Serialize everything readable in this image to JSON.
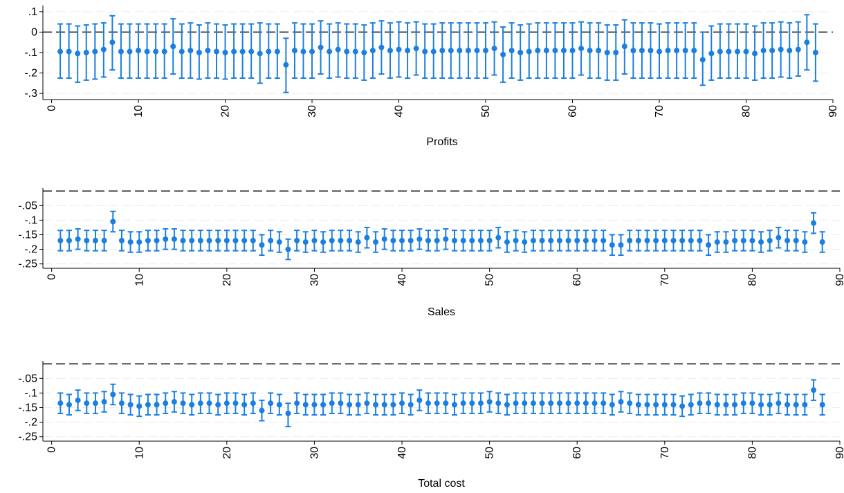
{
  "chart_data": [
    {
      "type": "scatter",
      "subtype": "point-with-confidence-interval",
      "xlabel": "Profits",
      "ylabel": "",
      "xlim": [
        -1,
        90
      ],
      "ylim": [
        -0.33,
        0.13
      ],
      "x_ticks": [
        0,
        10,
        20,
        30,
        40,
        50,
        60,
        70,
        80,
        90
      ],
      "x_tick_labels": [
        "0",
        "10",
        "20",
        "30",
        "40",
        "50",
        "60",
        "70",
        "80",
        "90"
      ],
      "y_ticks": [
        0.1,
        0,
        -0.1,
        -0.2,
        -0.3
      ],
      "y_tick_labels": [
        ".1",
        "0",
        "-.1",
        "-.2",
        "-.3"
      ],
      "reference_line": 0,
      "grid": true,
      "marker_color": "#1a7fe0",
      "x": [
        1,
        2,
        3,
        4,
        5,
        6,
        7,
        8,
        9,
        10,
        11,
        12,
        13,
        14,
        15,
        16,
        17,
        18,
        19,
        20,
        21,
        22,
        23,
        24,
        25,
        26,
        27,
        28,
        29,
        30,
        31,
        32,
        33,
        34,
        35,
        36,
        37,
        38,
        39,
        40,
        41,
        42,
        43,
        44,
        45,
        46,
        47,
        48,
        49,
        50,
        51,
        52,
        53,
        54,
        55,
        56,
        57,
        58,
        59,
        60,
        61,
        62,
        63,
        64,
        65,
        66,
        67,
        68,
        69,
        70,
        71,
        72,
        73,
        74,
        75,
        76,
        77,
        78,
        79,
        80,
        81,
        82,
        83,
        84,
        85,
        86,
        87,
        88
      ],
      "values": [
        -0.095,
        -0.095,
        -0.105,
        -0.1,
        -0.095,
        -0.085,
        -0.05,
        -0.095,
        -0.095,
        -0.09,
        -0.095,
        -0.095,
        -0.095,
        -0.07,
        -0.095,
        -0.09,
        -0.1,
        -0.09,
        -0.095,
        -0.1,
        -0.095,
        -0.095,
        -0.095,
        -0.105,
        -0.095,
        -0.095,
        -0.16,
        -0.09,
        -0.095,
        -0.095,
        -0.075,
        -0.095,
        -0.085,
        -0.095,
        -0.095,
        -0.1,
        -0.09,
        -0.075,
        -0.09,
        -0.085,
        -0.09,
        -0.08,
        -0.095,
        -0.095,
        -0.09,
        -0.09,
        -0.09,
        -0.09,
        -0.09,
        -0.09,
        -0.08,
        -0.11,
        -0.09,
        -0.1,
        -0.095,
        -0.09,
        -0.09,
        -0.09,
        -0.09,
        -0.09,
        -0.08,
        -0.09,
        -0.09,
        -0.1,
        -0.1,
        -0.07,
        -0.09,
        -0.09,
        -0.09,
        -0.095,
        -0.09,
        -0.09,
        -0.09,
        -0.09,
        -0.135,
        -0.105,
        -0.095,
        -0.095,
        -0.095,
        -0.095,
        -0.105,
        -0.09,
        -0.09,
        -0.085,
        -0.09,
        -0.085,
        -0.05,
        -0.1
      ],
      "ci_lower": [
        -0.225,
        -0.225,
        -0.245,
        -0.235,
        -0.23,
        -0.22,
        -0.185,
        -0.225,
        -0.225,
        -0.225,
        -0.225,
        -0.225,
        -0.225,
        -0.205,
        -0.225,
        -0.225,
        -0.23,
        -0.225,
        -0.225,
        -0.23,
        -0.225,
        -0.225,
        -0.225,
        -0.25,
        -0.225,
        -0.225,
        -0.295,
        -0.225,
        -0.225,
        -0.225,
        -0.205,
        -0.225,
        -0.22,
        -0.225,
        -0.225,
        -0.235,
        -0.225,
        -0.205,
        -0.225,
        -0.22,
        -0.225,
        -0.21,
        -0.225,
        -0.225,
        -0.225,
        -0.225,
        -0.225,
        -0.225,
        -0.225,
        -0.225,
        -0.21,
        -0.245,
        -0.225,
        -0.235,
        -0.225,
        -0.225,
        -0.225,
        -0.225,
        -0.225,
        -0.225,
        -0.21,
        -0.225,
        -0.225,
        -0.235,
        -0.235,
        -0.205,
        -0.225,
        -0.225,
        -0.225,
        -0.225,
        -0.225,
        -0.225,
        -0.225,
        -0.225,
        -0.26,
        -0.235,
        -0.225,
        -0.225,
        -0.225,
        -0.225,
        -0.235,
        -0.225,
        -0.225,
        -0.22,
        -0.225,
        -0.215,
        -0.185,
        -0.24
      ],
      "ci_upper": [
        0.04,
        0.04,
        0.03,
        0.035,
        0.04,
        0.045,
        0.08,
        0.04,
        0.04,
        0.04,
        0.04,
        0.04,
        0.04,
        0.065,
        0.04,
        0.045,
        0.035,
        0.045,
        0.04,
        0.035,
        0.04,
        0.04,
        0.04,
        0.045,
        0.04,
        0.04,
        -0.03,
        0.045,
        0.04,
        0.04,
        0.055,
        0.04,
        0.045,
        0.04,
        0.04,
        0.035,
        0.045,
        0.055,
        0.045,
        0.05,
        0.045,
        0.05,
        0.04,
        0.04,
        0.045,
        0.045,
        0.045,
        0.045,
        0.045,
        0.045,
        0.05,
        0.025,
        0.045,
        0.035,
        0.04,
        0.045,
        0.045,
        0.045,
        0.045,
        0.045,
        0.05,
        0.045,
        0.045,
        0.035,
        0.035,
        0.06,
        0.045,
        0.045,
        0.045,
        0.04,
        0.045,
        0.045,
        0.045,
        0.045,
        0.0,
        0.03,
        0.04,
        0.04,
        0.04,
        0.04,
        0.03,
        0.045,
        0.045,
        0.05,
        0.045,
        0.05,
        0.085,
        0.04
      ]
    },
    {
      "type": "scatter",
      "subtype": "point-with-confidence-interval",
      "xlabel": "Sales",
      "ylabel": "",
      "xlim": [
        -1,
        90
      ],
      "ylim": [
        -0.265,
        0.01
      ],
      "x_ticks": [
        0,
        10,
        20,
        30,
        40,
        50,
        60,
        70,
        80,
        90
      ],
      "x_tick_labels": [
        "0",
        "10",
        "20",
        "30",
        "40",
        "50",
        "60",
        "70",
        "80",
        "90"
      ],
      "y_ticks": [
        -0.05,
        -0.1,
        -0.15,
        -0.2,
        -0.25
      ],
      "y_tick_labels": [
        "-.05",
        "-.1",
        "-.15",
        "-.2",
        "-.25"
      ],
      "reference_line": 0,
      "grid": true,
      "marker_color": "#1a7fe0",
      "x": [
        1,
        2,
        3,
        4,
        5,
        6,
        7,
        8,
        9,
        10,
        11,
        12,
        13,
        14,
        15,
        16,
        17,
        18,
        19,
        20,
        21,
        22,
        23,
        24,
        25,
        26,
        27,
        28,
        29,
        30,
        31,
        32,
        33,
        34,
        35,
        36,
        37,
        38,
        39,
        40,
        41,
        42,
        43,
        44,
        45,
        46,
        47,
        48,
        49,
        50,
        51,
        52,
        53,
        54,
        55,
        56,
        57,
        58,
        59,
        60,
        61,
        62,
        63,
        64,
        65,
        66,
        67,
        68,
        69,
        70,
        71,
        72,
        73,
        74,
        75,
        76,
        77,
        78,
        79,
        80,
        81,
        82,
        83,
        84,
        85,
        86,
        87,
        88
      ],
      "values": [
        -0.17,
        -0.17,
        -0.165,
        -0.17,
        -0.17,
        -0.17,
        -0.105,
        -0.17,
        -0.175,
        -0.175,
        -0.17,
        -0.17,
        -0.165,
        -0.165,
        -0.17,
        -0.17,
        -0.17,
        -0.17,
        -0.17,
        -0.17,
        -0.17,
        -0.17,
        -0.17,
        -0.185,
        -0.17,
        -0.175,
        -0.2,
        -0.17,
        -0.175,
        -0.17,
        -0.175,
        -0.17,
        -0.17,
        -0.17,
        -0.175,
        -0.16,
        -0.175,
        -0.165,
        -0.17,
        -0.17,
        -0.17,
        -0.165,
        -0.17,
        -0.17,
        -0.165,
        -0.17,
        -0.17,
        -0.17,
        -0.17,
        -0.17,
        -0.16,
        -0.175,
        -0.17,
        -0.175,
        -0.17,
        -0.17,
        -0.17,
        -0.17,
        -0.17,
        -0.17,
        -0.17,
        -0.17,
        -0.17,
        -0.185,
        -0.185,
        -0.17,
        -0.17,
        -0.17,
        -0.17,
        -0.17,
        -0.17,
        -0.17,
        -0.17,
        -0.17,
        -0.185,
        -0.175,
        -0.175,
        -0.17,
        -0.17,
        -0.17,
        -0.175,
        -0.17,
        -0.16,
        -0.17,
        -0.17,
        -0.175,
        -0.11,
        -0.175
      ],
      "ci_lower": [
        -0.205,
        -0.205,
        -0.2,
        -0.205,
        -0.205,
        -0.205,
        -0.14,
        -0.205,
        -0.21,
        -0.21,
        -0.205,
        -0.205,
        -0.2,
        -0.2,
        -0.205,
        -0.205,
        -0.205,
        -0.205,
        -0.205,
        -0.205,
        -0.205,
        -0.205,
        -0.205,
        -0.22,
        -0.205,
        -0.21,
        -0.235,
        -0.205,
        -0.21,
        -0.205,
        -0.21,
        -0.205,
        -0.205,
        -0.205,
        -0.21,
        -0.195,
        -0.21,
        -0.2,
        -0.205,
        -0.205,
        -0.205,
        -0.2,
        -0.205,
        -0.205,
        -0.2,
        -0.205,
        -0.205,
        -0.205,
        -0.205,
        -0.205,
        -0.195,
        -0.21,
        -0.205,
        -0.21,
        -0.205,
        -0.205,
        -0.205,
        -0.205,
        -0.205,
        -0.205,
        -0.205,
        -0.205,
        -0.205,
        -0.22,
        -0.22,
        -0.205,
        -0.205,
        -0.205,
        -0.205,
        -0.205,
        -0.205,
        -0.205,
        -0.205,
        -0.205,
        -0.22,
        -0.21,
        -0.21,
        -0.205,
        -0.205,
        -0.205,
        -0.21,
        -0.205,
        -0.195,
        -0.205,
        -0.205,
        -0.21,
        -0.145,
        -0.21
      ],
      "ci_upper": [
        -0.135,
        -0.135,
        -0.13,
        -0.135,
        -0.135,
        -0.135,
        -0.07,
        -0.135,
        -0.14,
        -0.14,
        -0.135,
        -0.135,
        -0.13,
        -0.13,
        -0.135,
        -0.135,
        -0.135,
        -0.135,
        -0.135,
        -0.135,
        -0.135,
        -0.135,
        -0.135,
        -0.15,
        -0.135,
        -0.14,
        -0.165,
        -0.135,
        -0.14,
        -0.135,
        -0.14,
        -0.135,
        -0.135,
        -0.135,
        -0.14,
        -0.125,
        -0.14,
        -0.13,
        -0.135,
        -0.135,
        -0.135,
        -0.13,
        -0.135,
        -0.135,
        -0.13,
        -0.135,
        -0.135,
        -0.135,
        -0.135,
        -0.135,
        -0.125,
        -0.14,
        -0.135,
        -0.14,
        -0.135,
        -0.135,
        -0.135,
        -0.135,
        -0.135,
        -0.135,
        -0.135,
        -0.135,
        -0.135,
        -0.15,
        -0.15,
        -0.135,
        -0.135,
        -0.135,
        -0.135,
        -0.135,
        -0.135,
        -0.135,
        -0.135,
        -0.135,
        -0.15,
        -0.14,
        -0.14,
        -0.135,
        -0.135,
        -0.135,
        -0.14,
        -0.135,
        -0.125,
        -0.135,
        -0.135,
        -0.14,
        -0.075,
        -0.14
      ]
    },
    {
      "type": "scatter",
      "subtype": "point-with-confidence-interval",
      "xlabel": "Total cost",
      "ylabel": "",
      "xlim": [
        -1,
        90
      ],
      "ylim": [
        -0.265,
        0.01
      ],
      "x_ticks": [
        0,
        10,
        20,
        30,
        40,
        50,
        60,
        70,
        80,
        90
      ],
      "x_tick_labels": [
        "0",
        "10",
        "20",
        "30",
        "40",
        "50",
        "60",
        "70",
        "80",
        "90"
      ],
      "y_ticks": [
        -0.05,
        -0.1,
        -0.15,
        -0.2,
        -0.25
      ],
      "y_tick_labels": [
        "-.05",
        "-.1",
        "-.15",
        "-.2",
        "-.25"
      ],
      "reference_line": 0,
      "grid": true,
      "marker_color": "#1a7fe0",
      "x": [
        1,
        2,
        3,
        4,
        5,
        6,
        7,
        8,
        9,
        10,
        11,
        12,
        13,
        14,
        15,
        16,
        17,
        18,
        19,
        20,
        21,
        22,
        23,
        24,
        25,
        26,
        27,
        28,
        29,
        30,
        31,
        32,
        33,
        34,
        35,
        36,
        37,
        38,
        39,
        40,
        41,
        42,
        43,
        44,
        45,
        46,
        47,
        48,
        49,
        50,
        51,
        52,
        53,
        54,
        55,
        56,
        57,
        58,
        59,
        60,
        61,
        62,
        63,
        64,
        65,
        66,
        67,
        68,
        69,
        70,
        71,
        72,
        73,
        74,
        75,
        76,
        77,
        78,
        79,
        80,
        81,
        82,
        83,
        84,
        85,
        86,
        87,
        88
      ],
      "values": [
        -0.135,
        -0.14,
        -0.125,
        -0.135,
        -0.135,
        -0.13,
        -0.105,
        -0.135,
        -0.14,
        -0.145,
        -0.14,
        -0.14,
        -0.135,
        -0.13,
        -0.135,
        -0.14,
        -0.135,
        -0.135,
        -0.14,
        -0.135,
        -0.135,
        -0.14,
        -0.135,
        -0.16,
        -0.135,
        -0.14,
        -0.17,
        -0.135,
        -0.14,
        -0.14,
        -0.14,
        -0.135,
        -0.135,
        -0.14,
        -0.14,
        -0.135,
        -0.14,
        -0.14,
        -0.14,
        -0.135,
        -0.14,
        -0.125,
        -0.135,
        -0.135,
        -0.135,
        -0.14,
        -0.135,
        -0.135,
        -0.135,
        -0.13,
        -0.135,
        -0.14,
        -0.135,
        -0.135,
        -0.135,
        -0.135,
        -0.135,
        -0.135,
        -0.135,
        -0.135,
        -0.135,
        -0.135,
        -0.135,
        -0.14,
        -0.13,
        -0.135,
        -0.14,
        -0.14,
        -0.14,
        -0.14,
        -0.14,
        -0.145,
        -0.14,
        -0.135,
        -0.135,
        -0.14,
        -0.14,
        -0.14,
        -0.135,
        -0.135,
        -0.14,
        -0.14,
        -0.135,
        -0.14,
        -0.14,
        -0.14,
        -0.09,
        -0.14
      ],
      "ci_lower": [
        -0.17,
        -0.175,
        -0.16,
        -0.17,
        -0.17,
        -0.165,
        -0.14,
        -0.17,
        -0.175,
        -0.18,
        -0.175,
        -0.175,
        -0.17,
        -0.165,
        -0.17,
        -0.175,
        -0.17,
        -0.17,
        -0.175,
        -0.17,
        -0.17,
        -0.175,
        -0.17,
        -0.195,
        -0.17,
        -0.175,
        -0.215,
        -0.17,
        -0.175,
        -0.175,
        -0.175,
        -0.17,
        -0.17,
        -0.175,
        -0.175,
        -0.17,
        -0.175,
        -0.175,
        -0.175,
        -0.17,
        -0.175,
        -0.16,
        -0.17,
        -0.17,
        -0.17,
        -0.175,
        -0.17,
        -0.17,
        -0.17,
        -0.165,
        -0.17,
        -0.175,
        -0.17,
        -0.17,
        -0.17,
        -0.17,
        -0.17,
        -0.17,
        -0.17,
        -0.17,
        -0.17,
        -0.17,
        -0.17,
        -0.175,
        -0.165,
        -0.17,
        -0.175,
        -0.175,
        -0.175,
        -0.175,
        -0.175,
        -0.18,
        -0.175,
        -0.17,
        -0.17,
        -0.175,
        -0.175,
        -0.175,
        -0.17,
        -0.17,
        -0.175,
        -0.175,
        -0.17,
        -0.175,
        -0.175,
        -0.175,
        -0.125,
        -0.175
      ],
      "ci_upper": [
        -0.1,
        -0.105,
        -0.09,
        -0.1,
        -0.1,
        -0.095,
        -0.07,
        -0.1,
        -0.105,
        -0.11,
        -0.105,
        -0.105,
        -0.1,
        -0.095,
        -0.1,
        -0.105,
        -0.1,
        -0.1,
        -0.105,
        -0.1,
        -0.1,
        -0.105,
        -0.1,
        -0.125,
        -0.1,
        -0.105,
        -0.135,
        -0.1,
        -0.105,
        -0.105,
        -0.105,
        -0.1,
        -0.1,
        -0.105,
        -0.105,
        -0.1,
        -0.105,
        -0.105,
        -0.105,
        -0.1,
        -0.105,
        -0.09,
        -0.1,
        -0.1,
        -0.1,
        -0.105,
        -0.1,
        -0.1,
        -0.1,
        -0.095,
        -0.1,
        -0.105,
        -0.1,
        -0.1,
        -0.1,
        -0.1,
        -0.1,
        -0.1,
        -0.1,
        -0.1,
        -0.1,
        -0.1,
        -0.1,
        -0.105,
        -0.095,
        -0.1,
        -0.105,
        -0.105,
        -0.105,
        -0.105,
        -0.105,
        -0.11,
        -0.105,
        -0.1,
        -0.1,
        -0.105,
        -0.105,
        -0.105,
        -0.1,
        -0.1,
        -0.105,
        -0.105,
        -0.1,
        -0.105,
        -0.105,
        -0.105,
        -0.055,
        -0.105
      ]
    }
  ]
}
